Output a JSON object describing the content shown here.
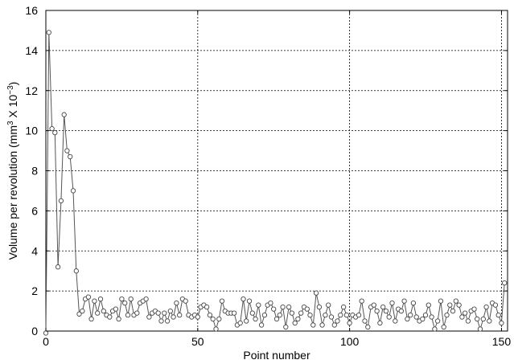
{
  "chart_data": {
    "type": "line",
    "xlabel": "Point number",
    "ylabel": {
      "main": "Volume per revolution (mm",
      "sup1": "3",
      "mid": " X 10",
      "sup2": "−3",
      "end": ")"
    },
    "xlim": [
      0,
      152
    ],
    "ylim": [
      0,
      16
    ],
    "xticks": [
      "0",
      "50",
      "100",
      "150"
    ],
    "yticks": [
      "0",
      "2",
      "4",
      "6",
      "8",
      "10",
      "12",
      "14",
      "16"
    ],
    "grid": true,
    "series": [
      {
        "marker": "circle",
        "x": [
          0,
          1,
          2,
          3,
          4,
          5,
          6,
          7,
          8,
          9,
          10,
          11,
          12,
          13,
          14,
          15,
          16,
          17,
          18,
          19,
          20,
          21,
          22,
          23,
          24,
          25,
          26,
          27,
          28,
          29,
          30,
          31,
          32,
          33,
          34,
          35,
          36,
          37,
          38,
          39,
          40,
          41,
          42,
          43,
          44,
          45,
          46,
          47,
          48,
          49,
          50,
          51,
          52,
          53,
          54,
          55,
          56,
          57,
          58,
          59,
          60,
          61,
          62,
          63,
          64,
          65,
          66,
          67,
          68,
          69,
          70,
          71,
          72,
          73,
          74,
          75,
          76,
          77,
          78,
          79,
          80,
          81,
          82,
          83,
          84,
          85,
          86,
          87,
          88,
          89,
          90,
          91,
          92,
          93,
          94,
          95,
          96,
          97,
          98,
          99,
          100,
          101,
          102,
          103,
          104,
          105,
          106,
          107,
          108,
          109,
          110,
          111,
          112,
          113,
          114,
          115,
          116,
          117,
          118,
          119,
          120,
          121,
          122,
          123,
          124,
          125,
          126,
          127,
          128,
          129,
          130,
          131,
          132,
          133,
          134,
          135,
          136,
          137,
          138,
          139,
          140,
          141,
          142,
          143,
          144,
          145,
          146,
          147,
          148,
          149,
          150,
          151
        ],
        "y": [
          -0.1,
          14.9,
          10.1,
          9.9,
          3.2,
          6.5,
          10.8,
          9.0,
          8.7,
          7.0,
          3.0,
          0.85,
          1.0,
          1.6,
          1.7,
          0.6,
          1.5,
          0.9,
          1.6,
          1.0,
          0.8,
          0.7,
          1.0,
          1.1,
          0.6,
          1.6,
          1.4,
          0.8,
          1.6,
          0.8,
          0.9,
          1.4,
          1.5,
          1.6,
          0.7,
          0.9,
          1.0,
          0.9,
          0.5,
          0.9,
          0.5,
          1.0,
          0.7,
          1.4,
          0.8,
          1.6,
          1.5,
          0.8,
          0.7,
          0.8,
          0.7,
          1.2,
          1.3,
          1.2,
          0.8,
          0.6,
          0.1,
          0.6,
          1.5,
          1.0,
          0.9,
          0.9,
          0.9,
          0.3,
          0.4,
          1.6,
          0.5,
          1.5,
          0.9,
          0.6,
          1.3,
          0.3,
          0.8,
          1.3,
          1.4,
          1.1,
          0.6,
          0.8,
          1.2,
          0.2,
          1.2,
          0.9,
          0.4,
          0.6,
          0.9,
          1.2,
          1.1,
          0.8,
          0.3,
          1.9,
          1.2,
          0.3,
          0.8,
          1.3,
          0.7,
          0.3,
          0.5,
          0.8,
          1.2,
          0.8,
          0.4,
          0.8,
          0.7,
          0.8,
          1.5,
          0.5,
          0.2,
          1.2,
          1.3,
          1.0,
          0.4,
          1.2,
          1.0,
          0.7,
          1.4,
          0.5,
          1.1,
          1.0,
          1.5,
          0.6,
          0.8,
          1.4,
          0.7,
          0.5,
          0.6,
          0.8,
          1.3,
          0.7,
          0.1,
          0.5,
          1.5,
          0.2,
          0.8,
          1.3,
          1.0,
          1.5,
          1.3,
          0.7,
          0.9,
          0.5,
          1.0,
          1.1,
          0.6,
          0.1,
          0.6,
          1.2,
          0.5,
          1.4,
          1.3,
          0.8,
          0.4,
          2.4
        ]
      }
    ]
  }
}
